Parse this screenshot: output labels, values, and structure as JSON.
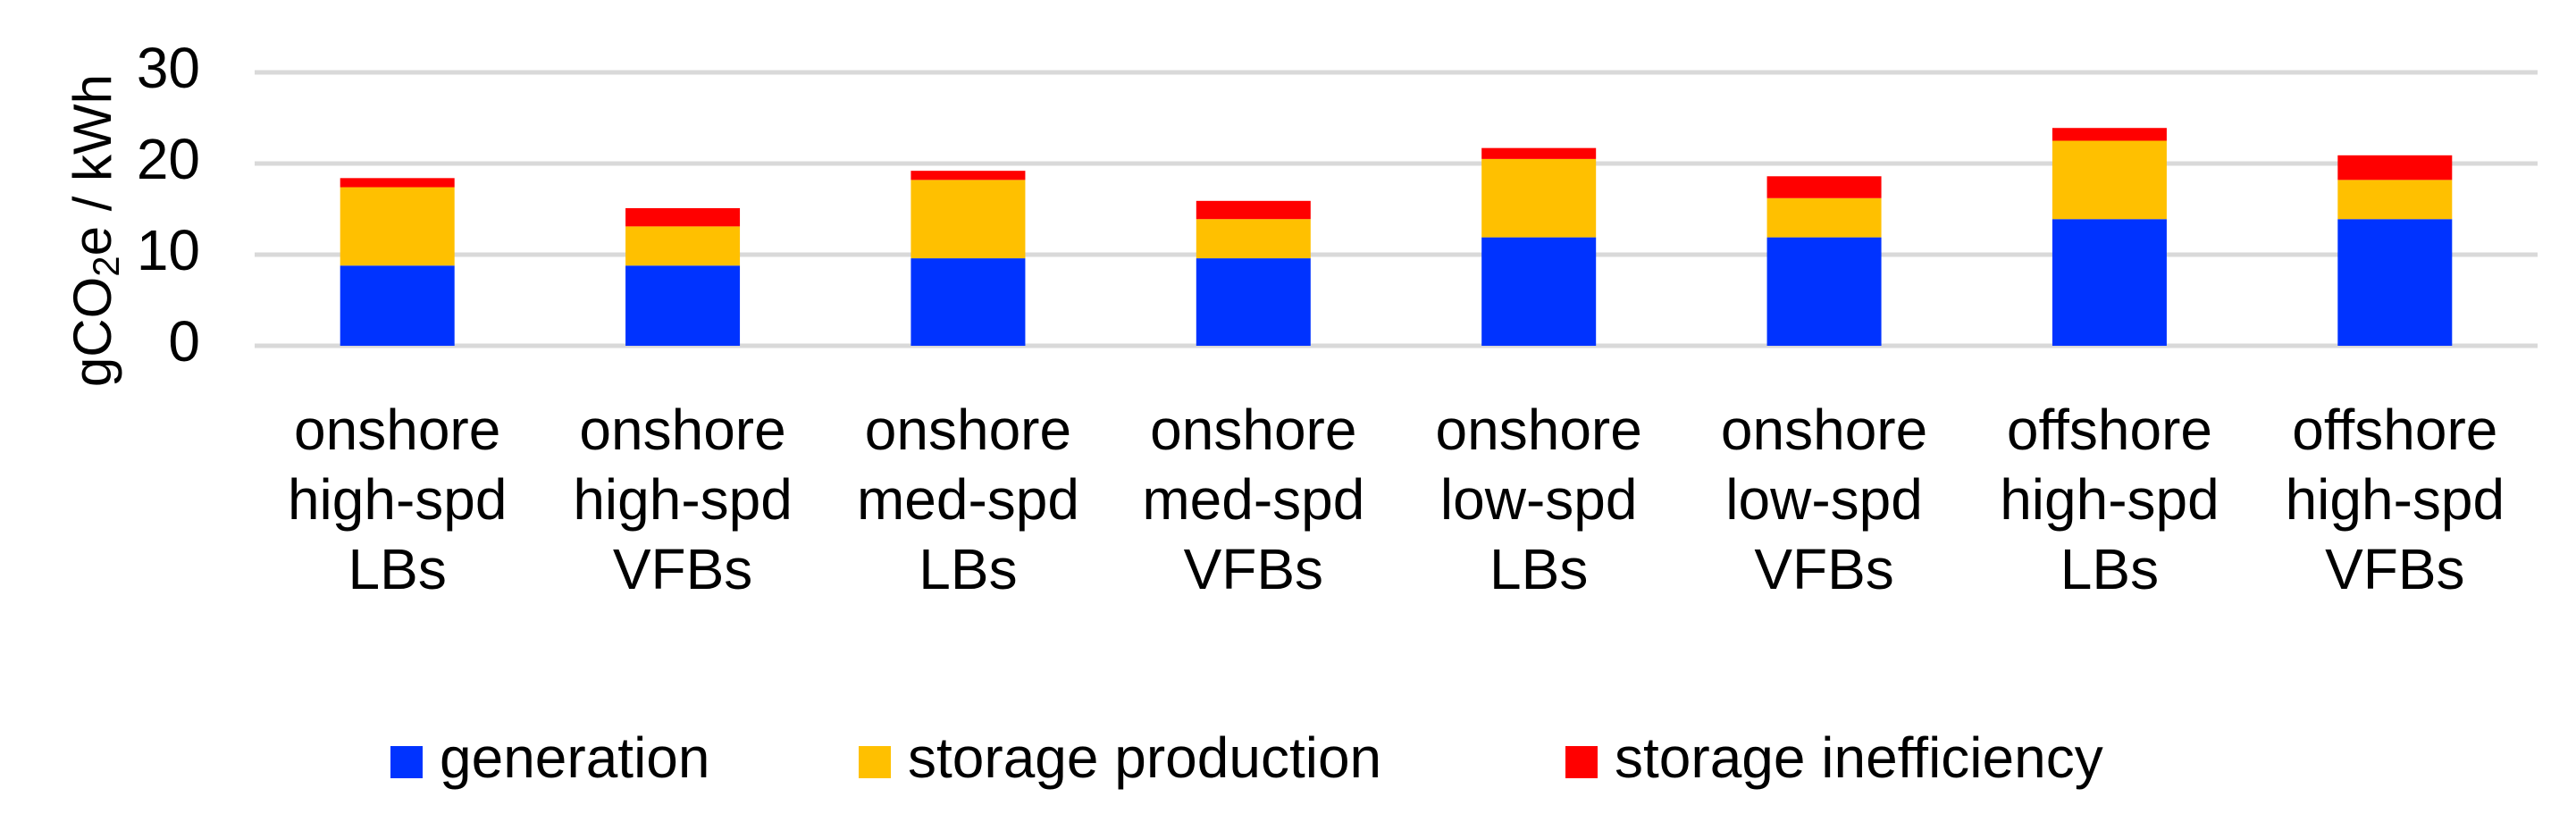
{
  "chart_data": {
    "type": "bar",
    "stacked": true,
    "categories": [
      [
        "onshore",
        "high-spd",
        "LBs"
      ],
      [
        "onshore",
        "high-spd",
        "VFBs"
      ],
      [
        "onshore",
        "med-spd",
        "LBs"
      ],
      [
        "onshore",
        "med-spd",
        "VFBs"
      ],
      [
        "onshore",
        "low-spd",
        "LBs"
      ],
      [
        "onshore",
        "low-spd",
        "VFBs"
      ],
      [
        "offshore",
        "high-spd",
        "LBs"
      ],
      [
        "offshore",
        "high-spd",
        "VFBs"
      ]
    ],
    "series": [
      {
        "name": "generation",
        "color": "#0033FF",
        "values": [
          8.8,
          8.8,
          9.6,
          9.6,
          11.9,
          11.9,
          13.9,
          13.9
        ]
      },
      {
        "name": "storage production",
        "color": "#FFC000",
        "values": [
          8.6,
          4.3,
          8.6,
          4.3,
          8.6,
          4.3,
          8.6,
          4.3
        ]
      },
      {
        "name": "storage inefficiency",
        "color": "#FF0000",
        "values": [
          1.0,
          2.0,
          1.0,
          2.0,
          1.2,
          2.4,
          1.4,
          2.7
        ]
      }
    ],
    "ylabel": {
      "prefix": "gCO",
      "subscript": "2",
      "suffix": "e / kWh"
    },
    "yticks": [
      0,
      10,
      20,
      30
    ],
    "ylim": [
      0,
      30
    ],
    "grid": true,
    "legend_position": "bottom"
  }
}
